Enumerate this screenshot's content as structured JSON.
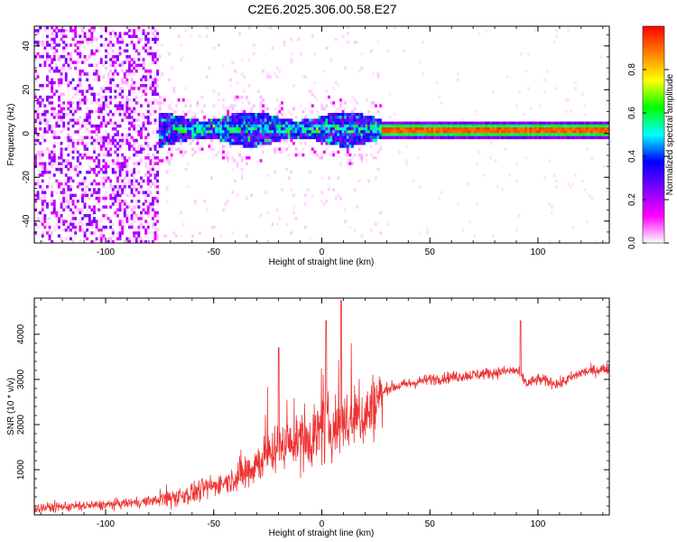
{
  "title": "C2E6.2025.306.00.58.E27",
  "chart_data": [
    {
      "type": "heatmap",
      "name": "spectrogram",
      "xlabel": "Height of straight line (km)",
      "ylabel": "Frequency (Hz)",
      "xlim": [
        -133,
        133
      ],
      "ylim": [
        -50,
        49
      ],
      "xticks": [
        -100,
        -50,
        0,
        50,
        100
      ],
      "yticks": [
        -40,
        -20,
        0,
        20,
        40
      ],
      "colorbar": {
        "label": "Normalized spectral amplitude",
        "range": [
          0,
          1
        ],
        "ticks": [
          0.0,
          0.2,
          0.4,
          0.6,
          0.8
        ],
        "tick_labels": [
          "0.0",
          "0.2",
          "0.4",
          "0.6",
          "0.8"
        ],
        "colormap": [
          "#ffffff",
          "#ff00ff",
          "#8000ff",
          "#0000ff",
          "#00ffff",
          "#00ff00",
          "#ffff00",
          "#ff8000",
          "#ff0000"
        ]
      },
      "features": {
        "noisy_region_x": [
          -133,
          -75
        ],
        "scatter_band_x": [
          -75,
          28
        ],
        "scatter_band_center_hz": 2,
        "scatter_band_halfwidth_hz": 6,
        "tone_x": [
          28,
          133
        ],
        "tone_freq_hz": 1.5,
        "tone_amplitude": 0.95,
        "secondary_tone_x": [
          93,
          133
        ],
        "secondary_tone_freq_hz": 0
      }
    },
    {
      "type": "line",
      "name": "snr",
      "xlabel": "Height of straight line (km)",
      "ylabel": "SNR (10 * v/v)",
      "xlim": [
        -133,
        133
      ],
      "ylim": [
        0,
        4800
      ],
      "xticks": [
        -100,
        -50,
        0,
        50,
        100
      ],
      "yticks": [
        1000,
        2000,
        3000,
        4000
      ],
      "color": "#ee3333",
      "series": [
        {
          "name": "SNR",
          "x": [
            -133,
            -120,
            -100,
            -90,
            -80,
            -70,
            -60,
            -50,
            -40,
            -30,
            -20,
            -10,
            0,
            10,
            20,
            25,
            30,
            40,
            50,
            60,
            70,
            80,
            90,
            95,
            100,
            110,
            120,
            133
          ],
          "values": [
            150,
            180,
            220,
            260,
            300,
            380,
            480,
            650,
            800,
            1150,
            1500,
            1650,
            1850,
            2000,
            2200,
            2450,
            2800,
            2900,
            3000,
            3050,
            3100,
            3150,
            3200,
            2900,
            3000,
            2900,
            3150,
            3250
          ]
        }
      ],
      "peaks": [
        {
          "x": 2,
          "value": 4300
        },
        {
          "x": 9,
          "value": 4750
        },
        {
          "x": 92,
          "value": 4300
        },
        {
          "x": -20,
          "value": 3700
        }
      ]
    }
  ]
}
